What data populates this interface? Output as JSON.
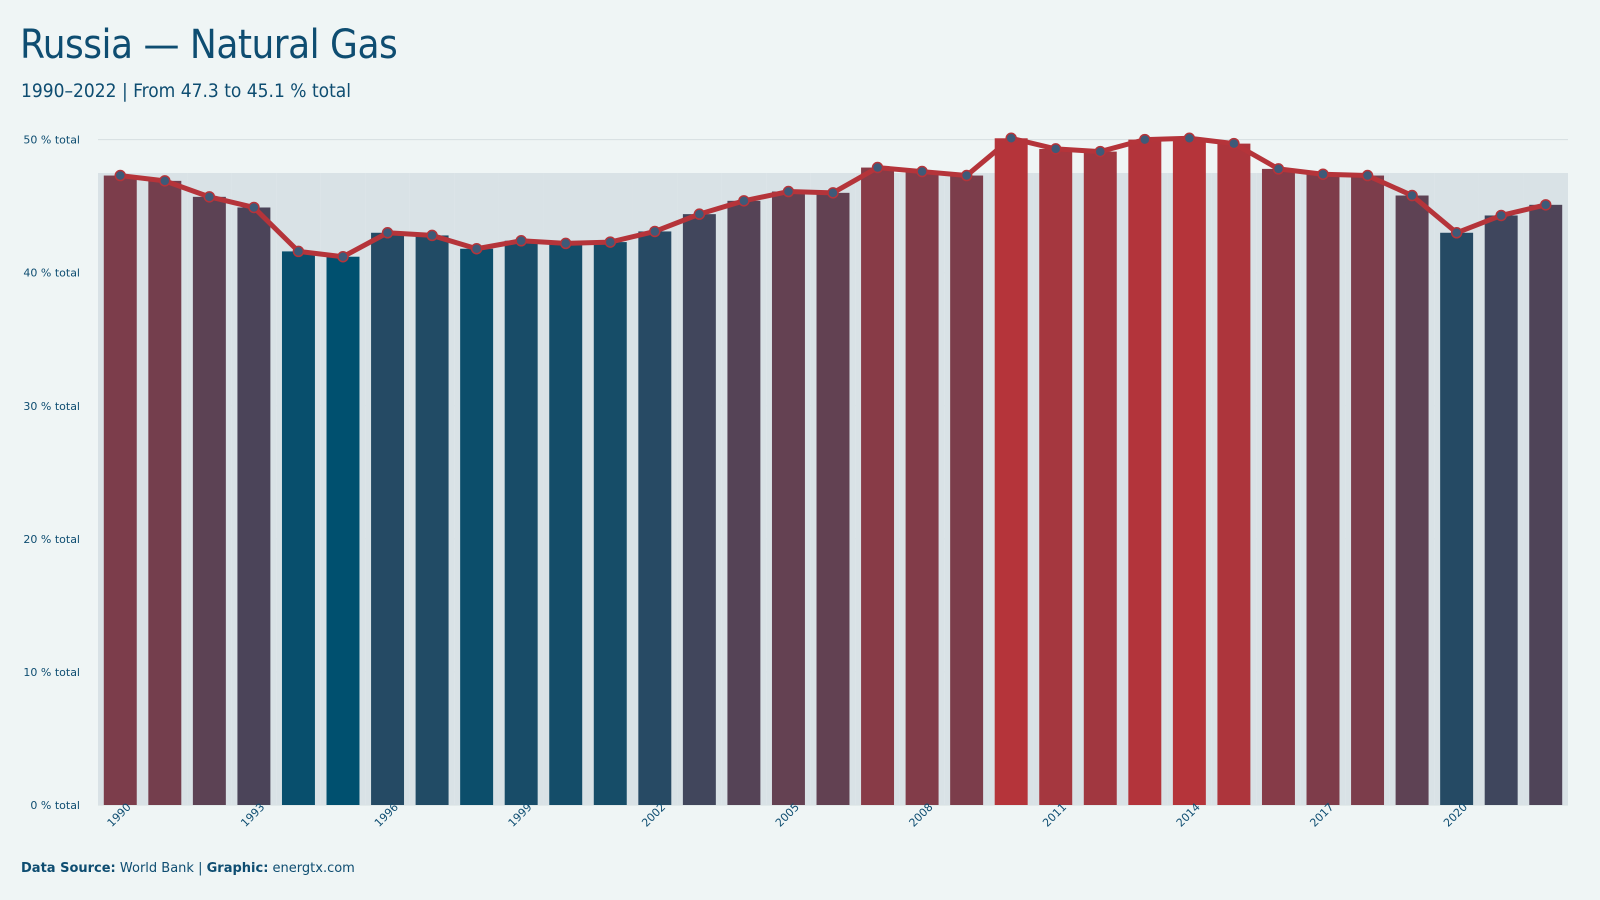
{
  "title": "Russia — Natural Gas",
  "subtitle": "1990–2022 | From 47.3 to 45.1 % total",
  "footer": {
    "source_label": "Data Source:",
    "source": "World Bank",
    "separator": "|",
    "graphic_label": "Graphic:",
    "graphic": "energtx.com"
  },
  "chart_data": {
    "type": "bar",
    "overlay": "line",
    "x": [
      1990,
      1991,
      1992,
      1993,
      1994,
      1995,
      1996,
      1997,
      1998,
      1999,
      2000,
      2001,
      2002,
      2003,
      2004,
      2005,
      2006,
      2007,
      2008,
      2009,
      2010,
      2011,
      2012,
      2013,
      2014,
      2015,
      2016,
      2017,
      2018,
      2019,
      2020,
      2021,
      2022
    ],
    "values": [
      47.3,
      46.9,
      45.7,
      44.9,
      41.6,
      41.2,
      43.0,
      42.8,
      41.8,
      42.4,
      42.2,
      42.3,
      43.1,
      44.4,
      45.4,
      46.1,
      46.0,
      47.9,
      47.6,
      47.3,
      50.1,
      49.3,
      49.1,
      50.0,
      50.1,
      49.7,
      47.8,
      47.4,
      47.3,
      45.8,
      43.0,
      44.3,
      45.1
    ],
    "x_tick_labels": [
      "1990",
      "1993",
      "1996",
      "1999",
      "2002",
      "2005",
      "2008",
      "2011",
      "2014",
      "2017",
      "2020"
    ],
    "y_ticks": [
      0,
      10,
      20,
      30,
      40,
      50
    ],
    "y_tick_suffix": " % total",
    "ylim": [
      0,
      52
    ],
    "grid": true,
    "legend": "none",
    "colors": {
      "low": "#00506f",
      "high": "#b5343a",
      "line": "#b5343a",
      "point_fill": "#3e5a78",
      "bar_track": "#d9e2e6",
      "grid": "#d6dee0",
      "tick_text": "#0e4d71"
    }
  }
}
